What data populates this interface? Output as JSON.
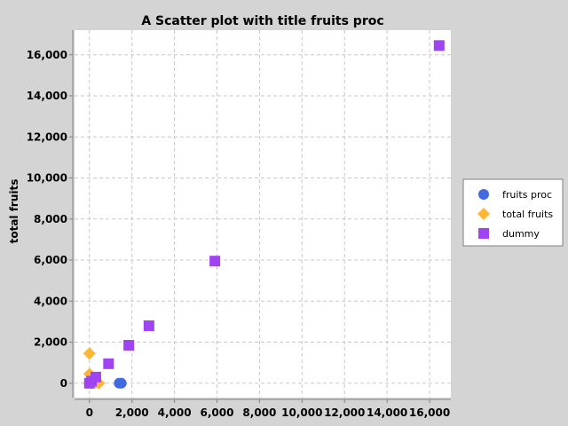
{
  "chart_data": {
    "type": "scatter",
    "title": "A Scatter plot with title fruits proc",
    "xlabel": "",
    "ylabel": "total fruits",
    "xlim": [
      -700,
      17000
    ],
    "ylim": [
      -700,
      17200
    ],
    "x_ticks": [
      0,
      2000,
      4000,
      6000,
      8000,
      10000,
      12000,
      14000,
      16000
    ],
    "x_tick_labels": [
      "0",
      "2,000",
      "4,000",
      "6,000",
      "8,000",
      "10,000",
      "12,000",
      "14,000",
      "16,000"
    ],
    "y_ticks": [
      0,
      2000,
      4000,
      6000,
      8000,
      10000,
      12000,
      14000,
      16000
    ],
    "y_tick_labels": [
      "0",
      "2,000",
      "4,000",
      "6,000",
      "8,000",
      "10,000",
      "12,000",
      "14,000",
      "16,000"
    ],
    "grid": true,
    "legend_position": "right",
    "series": [
      {
        "name": "fruits proc",
        "marker": "circle",
        "color": "#4169e1",
        "points": [
          [
            1400,
            0
          ],
          [
            1500,
            0
          ],
          [
            0,
            0
          ],
          [
            100,
            0
          ],
          [
            200,
            50
          ]
        ]
      },
      {
        "name": "total fruits",
        "marker": "diamond",
        "color": "#ffb733",
        "points": [
          [
            0,
            1450
          ],
          [
            0,
            450
          ],
          [
            450,
            0
          ],
          [
            300,
            50
          ],
          [
            100,
            0
          ],
          [
            0,
            0
          ]
        ]
      },
      {
        "name": "dummy",
        "marker": "square",
        "color": "#a044f2",
        "points": [
          [
            0,
            0
          ],
          [
            100,
            100
          ],
          [
            300,
            300
          ],
          [
            900,
            950
          ],
          [
            1850,
            1850
          ],
          [
            2800,
            2800
          ],
          [
            5900,
            5950
          ],
          [
            16450,
            16450
          ]
        ]
      }
    ]
  }
}
